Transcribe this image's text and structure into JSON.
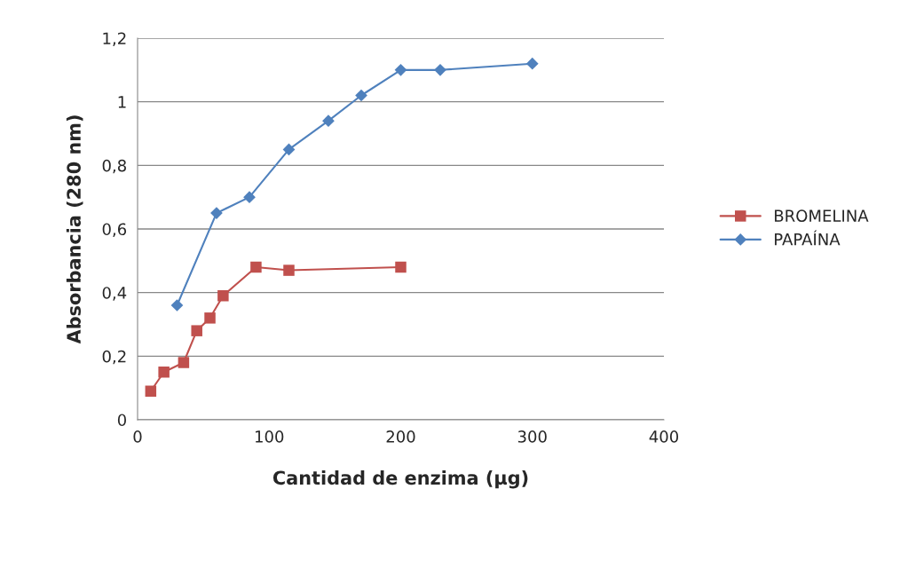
{
  "chart_data": {
    "type": "line",
    "xlabel": "Cantidad de enzima (µg)",
    "ylabel": "Absorbancia (280 nm)",
    "xlim": [
      0,
      400
    ],
    "xticks": [
      0,
      100,
      200,
      300,
      400
    ],
    "ylim": [
      0,
      1.2
    ],
    "yticks": [
      0,
      {
        "value": 0.2,
        "label": "0,2"
      },
      {
        "value": 0.4,
        "label": "0,4"
      },
      {
        "value": 0.6,
        "label": "0,6"
      },
      {
        "value": 0.8,
        "label": "0,8"
      },
      1,
      {
        "value": 1.2,
        "label": "1,2"
      }
    ],
    "grid": "y",
    "legend": "right",
    "series": [
      {
        "name": "BROMELINA",
        "color": "#c0504d",
        "marker": "square",
        "x": [
          10,
          20,
          35,
          45,
          55,
          65,
          90,
          115,
          200
        ],
        "values": [
          0.09,
          0.15,
          0.18,
          0.28,
          0.32,
          0.39,
          0.48,
          0.47,
          0.48
        ]
      },
      {
        "name": "PAPAÍNA",
        "color": "#4f81bd",
        "marker": "diamond",
        "x": [
          30,
          60,
          85,
          115,
          145,
          170,
          200,
          230,
          300
        ],
        "values": [
          0.36,
          0.65,
          0.7,
          0.85,
          0.94,
          1.02,
          1.1,
          1.1,
          1.12
        ]
      }
    ]
  }
}
